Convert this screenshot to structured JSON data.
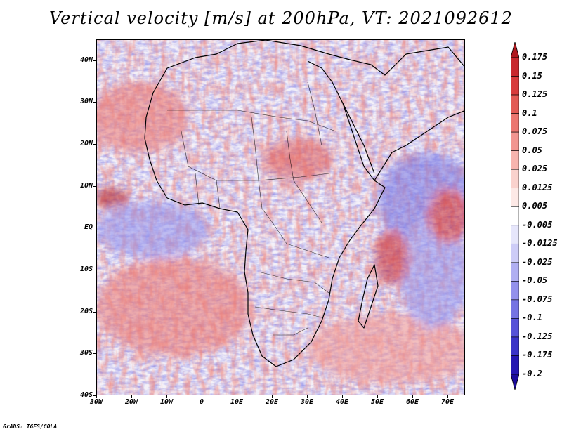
{
  "title": "Vertical velocity [m/s] at 200hPa, VT: 2021092612",
  "map": {
    "lat_labels": [
      "40N",
      "30N",
      "20N",
      "10N",
      "EQ",
      "10S",
      "20S",
      "30S",
      "40S"
    ],
    "lon_labels": [
      "30W",
      "20W",
      "10W",
      "0",
      "10E",
      "20E",
      "30E",
      "40E",
      "50E",
      "60E",
      "70E"
    ],
    "lon_range": [
      -30,
      75
    ],
    "lat_range": [
      -40,
      45
    ],
    "field": "vertical velocity",
    "units": "m/s",
    "level": "200hPa"
  },
  "colorbar": {
    "levels": [
      "0.175",
      "0.15",
      "0.125",
      "0.1",
      "0.075",
      "0.05",
      "0.025",
      "0.0125",
      "0.005",
      "-0.005",
      "-0.0125",
      "-0.025",
      "-0.05",
      "-0.075",
      "-0.1",
      "-0.125",
      "-0.175",
      "-0.2"
    ],
    "colors": [
      "#b0181e",
      "#c8282d",
      "#d83b3c",
      "#e35a55",
      "#ec7670",
      "#f29590",
      "#f7b4ae",
      "#fad2cd",
      "#fde9e6",
      "#ffffff",
      "#e6e6fb",
      "#cdccf7",
      "#b0aff2",
      "#9391ec",
      "#7573e3",
      "#5652d8",
      "#3a33c8",
      "#2416b2",
      "#1a0a9c"
    ]
  },
  "credit": "GrADS: IGES/COLA"
}
